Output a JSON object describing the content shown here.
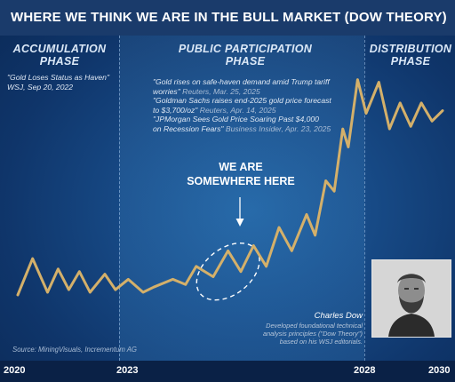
{
  "title": "WHERE WE THINK WE ARE IN THE BULL MARKET (DOW THEORY)",
  "phases": {
    "accumulation": [
      "ACCUMULATION",
      "PHASE"
    ],
    "public": [
      "PUBLIC PARTICIPATION",
      "PHASE"
    ],
    "distribution": [
      "DISTRIBUTION",
      "PHASE"
    ]
  },
  "quotes": {
    "accumulation": [
      {
        "text": "\"Gold Loses Status as Haven\"",
        "src": ""
      },
      {
        "text": "WSJ, Sep 20, 2022",
        "src": ""
      }
    ],
    "public": [
      {
        "text": "\"Gold rises on safe-haven demand amid Trump tariff",
        "src": ""
      },
      {
        "text": "worries\"",
        "src": " Reuters, Mar. 25, 2025"
      },
      {
        "text": "\"Goldman Sachs raises end-2025 gold price forecast",
        "src": ""
      },
      {
        "text": "to $3,700/oz\"",
        "src": "  Reuters, Apr. 14, 2025"
      },
      {
        "text": "\"JPMorgan Sees Gold Price Soaring Past $4,000",
        "src": ""
      },
      {
        "text": "on Recession Fears\"",
        "src": " Business Insider, Apr. 23, 2025"
      }
    ]
  },
  "callout": [
    "WE ARE",
    "SOMEWHERE HERE"
  ],
  "dow": {
    "name": "Charles Dow",
    "description": [
      "Developed foundational technical",
      "analysis principles (\"Dow Theory\")",
      "based on his WSJ editorials."
    ]
  },
  "source": "Source: MiningVisuals, Incrementum AG",
  "colors": {
    "line": "#d4b06a",
    "title_bar": "#1a3b6b",
    "background": "#134079"
  },
  "chart_data": {
    "type": "line",
    "title": "WHERE WE THINK WE ARE IN THE BULL MARKET (DOW THEORY)",
    "xlabel": "",
    "ylabel": "",
    "x_ticks": [
      "2020",
      "2023",
      "2028",
      "2030"
    ],
    "xlim": [
      2020,
      2030
    ],
    "ylim": [
      0,
      100
    ],
    "series": [
      {
        "values": [
          [
            2020.0,
            12
          ],
          [
            2020.35,
            26
          ],
          [
            2020.7,
            13
          ],
          [
            2020.95,
            22
          ],
          [
            2021.2,
            14
          ],
          [
            2021.45,
            21
          ],
          [
            2021.7,
            13
          ],
          [
            2022.05,
            20
          ],
          [
            2022.3,
            14
          ],
          [
            2022.6,
            18
          ],
          [
            2022.95,
            13
          ],
          [
            2023.2,
            15
          ],
          [
            2023.65,
            18
          ],
          [
            2023.95,
            16
          ],
          [
            2024.2,
            23
          ],
          [
            2024.6,
            19
          ],
          [
            2024.95,
            29
          ],
          [
            2025.25,
            21
          ],
          [
            2025.55,
            31
          ],
          [
            2025.85,
            23
          ],
          [
            2026.15,
            38
          ],
          [
            2026.45,
            29
          ],
          [
            2026.8,
            43
          ],
          [
            2027.0,
            35
          ],
          [
            2027.25,
            56
          ],
          [
            2027.45,
            52
          ],
          [
            2027.65,
            76
          ],
          [
            2027.78,
            69
          ],
          [
            2028.0,
            95
          ],
          [
            2028.2,
            82
          ],
          [
            2028.5,
            94
          ],
          [
            2028.75,
            76
          ],
          [
            2029.0,
            86
          ],
          [
            2029.25,
            77
          ],
          [
            2029.5,
            86
          ],
          [
            2029.75,
            79
          ],
          [
            2030.0,
            83
          ]
        ]
      }
    ],
    "grid": false,
    "legend": "none"
  }
}
